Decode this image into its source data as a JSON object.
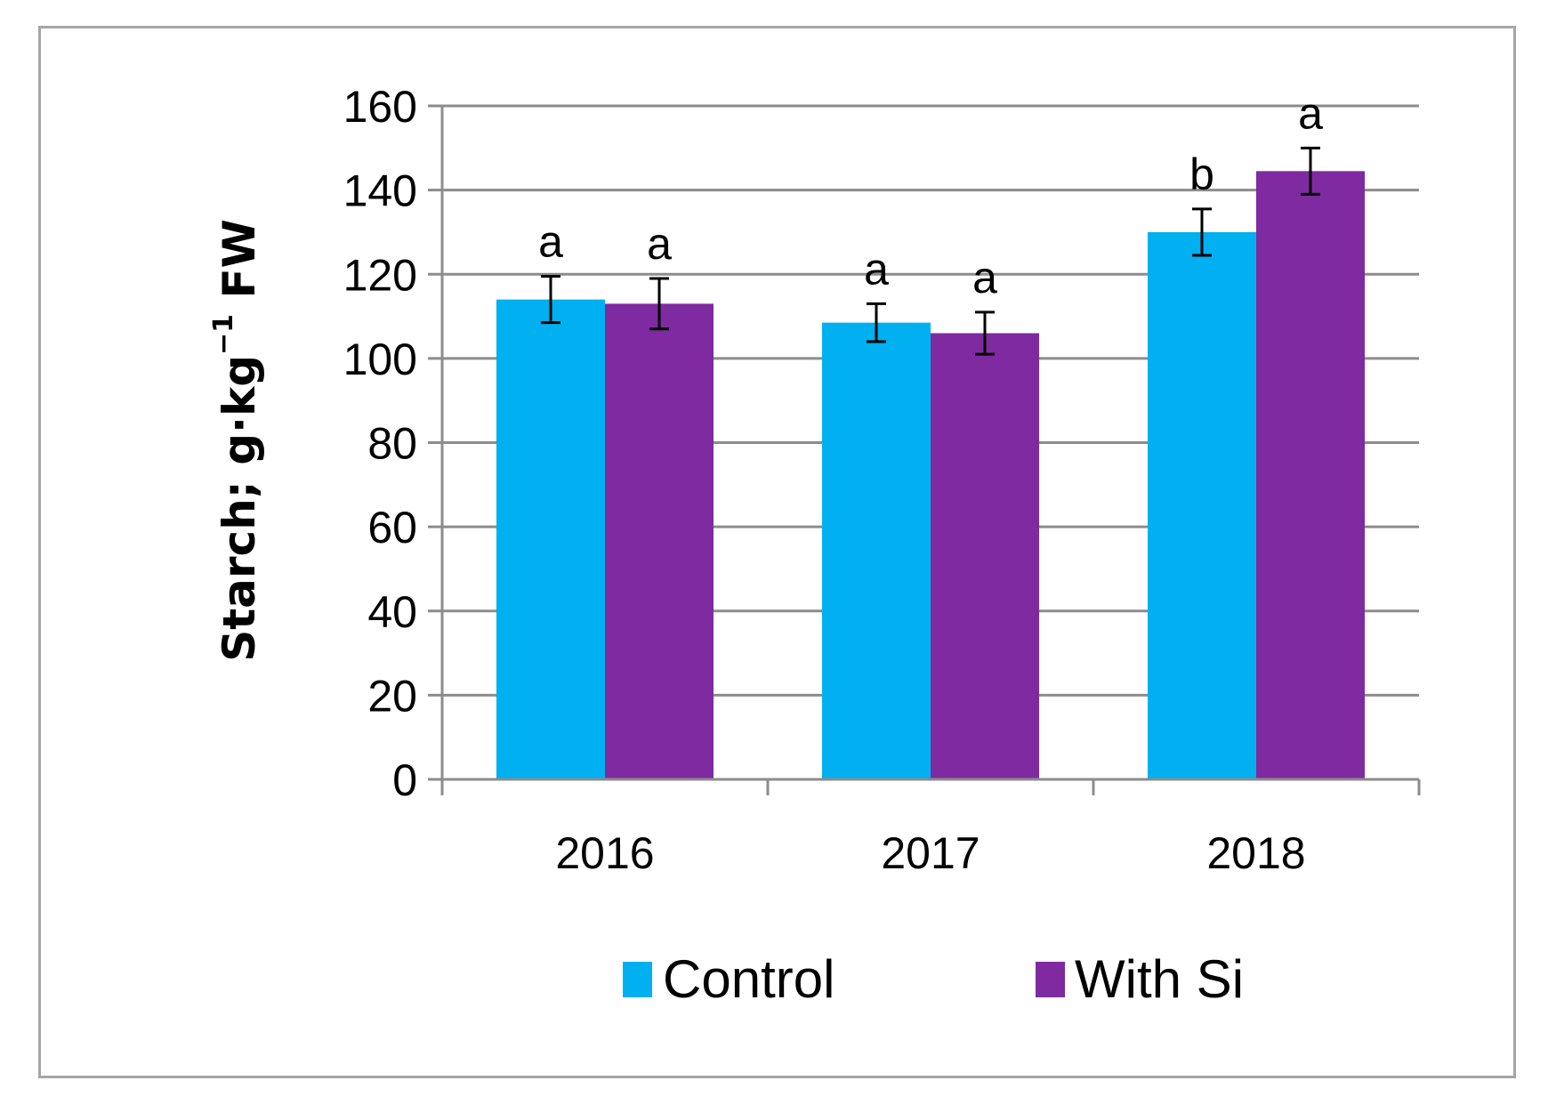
{
  "chart_data": {
    "type": "bar",
    "categories": [
      "2016",
      "2017",
      "2018"
    ],
    "series": [
      {
        "name": "Control",
        "color": "#00b0f0",
        "values": [
          114,
          108.5,
          130
        ],
        "error": [
          5.5,
          4.5,
          5.5
        ],
        "labels": [
          "a",
          "a",
          "b"
        ]
      },
      {
        "name": "With Si",
        "color": "#7f2aa0",
        "values": [
          113,
          106,
          144.5
        ],
        "error": [
          6,
          5,
          5.5
        ],
        "labels": [
          "a",
          "a",
          "a"
        ]
      }
    ],
    "ylabel_main": "Starch; g·kg",
    "ylabel_sup": "−1",
    "ylabel_tail": " FW",
    "ylim": [
      0,
      160
    ],
    "yticks": [
      0,
      20,
      40,
      60,
      80,
      100,
      120,
      140,
      160
    ],
    "grid": true,
    "legend_position": "bottom"
  }
}
